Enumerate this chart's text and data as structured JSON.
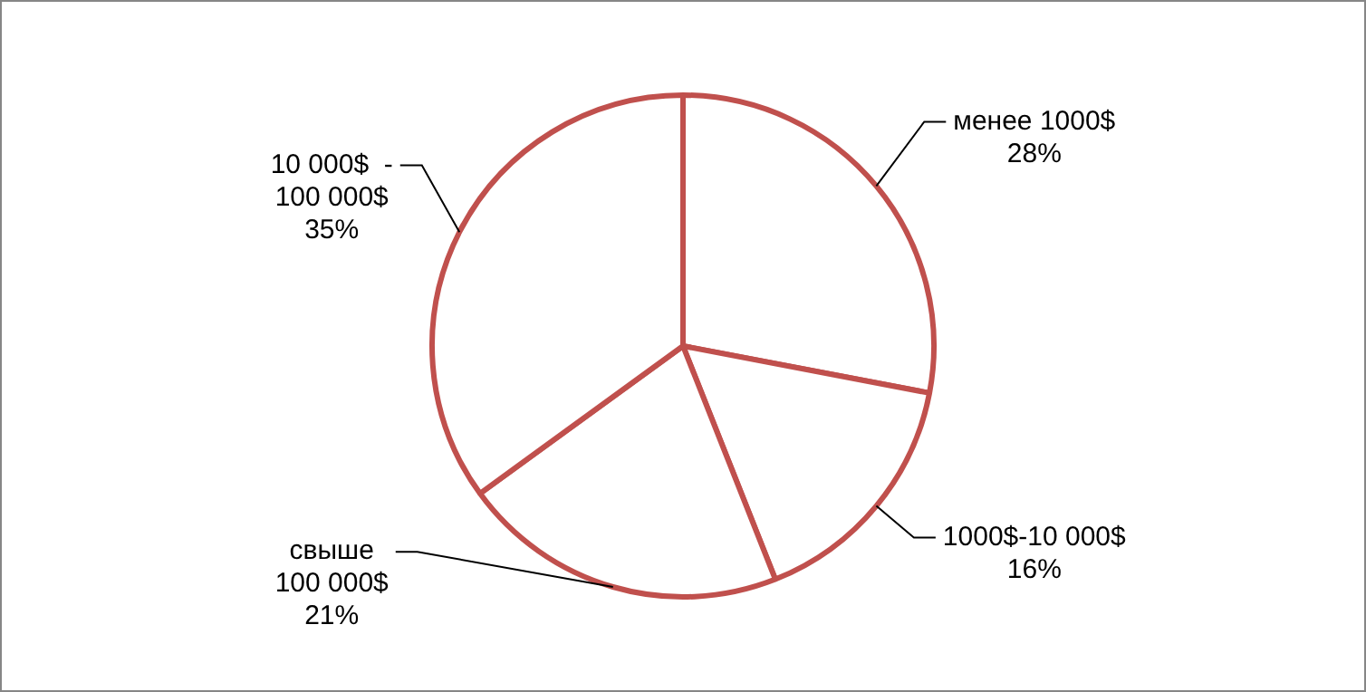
{
  "chart_data": {
    "type": "pie",
    "categories": [
      "менее 1000$",
      "1000$-10 000$",
      "свыше 100 000$",
      "10 000$  - 100 000$"
    ],
    "values": [
      28,
      16,
      21,
      35
    ],
    "colors": [
      "#c0504d",
      "#c0504d",
      "#c0504d",
      "#c0504d"
    ],
    "value_labels": [
      "28%",
      "16%",
      "21%",
      "35%"
    ],
    "legend": false
  }
}
